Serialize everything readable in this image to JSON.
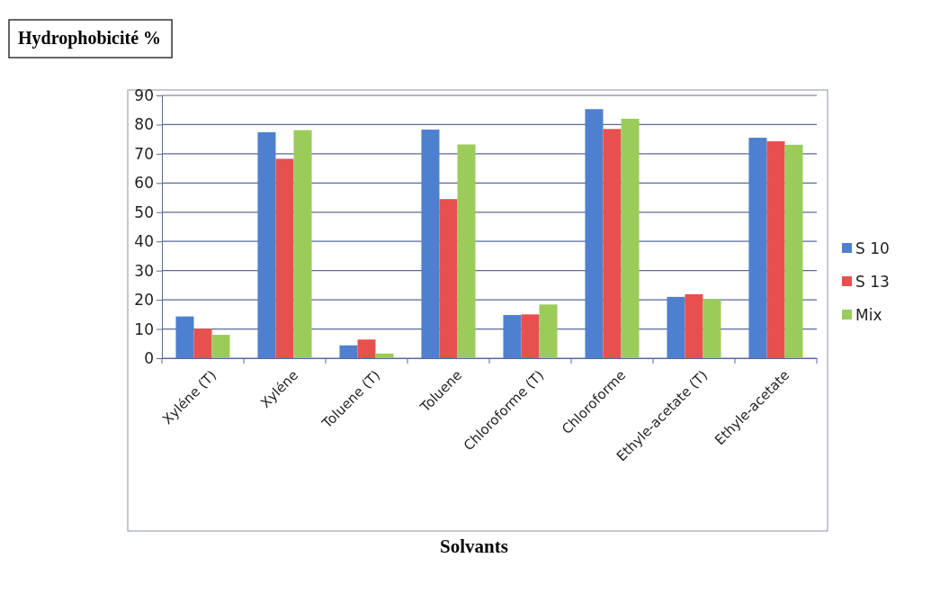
{
  "chart_data": {
    "type": "bar",
    "title": "Hydrophobicité %",
    "xlabel": "Solvants",
    "categories": [
      "Xyléne (T)",
      "Xyléne",
      "Toluene (T)",
      "Toluene",
      "Chloroforme (T)",
      "Chloroforme",
      "Ethyle-acetate (T)",
      "Ethyle-acetate"
    ],
    "series": [
      {
        "name": "S 10",
        "color": "#4f7fcf",
        "values": [
          14.3,
          77.4,
          4.4,
          78.3,
          14.8,
          85.3,
          21.0,
          75.5
        ]
      },
      {
        "name": "S 13",
        "color": "#e8504f",
        "values": [
          10.1,
          68.3,
          6.4,
          54.5,
          15.0,
          78.5,
          21.9,
          74.3
        ]
      },
      {
        "name": "Mix",
        "color": "#9bcc5a",
        "values": [
          8.0,
          78.1,
          1.6,
          73.2,
          18.4,
          82.0,
          20.2,
          73.1
        ]
      }
    ],
    "ylim": [
      0,
      90
    ],
    "yticks": [
      0,
      10,
      20,
      30,
      40,
      50,
      60,
      70,
      80,
      90
    ],
    "grid": true,
    "legend": "right"
  }
}
